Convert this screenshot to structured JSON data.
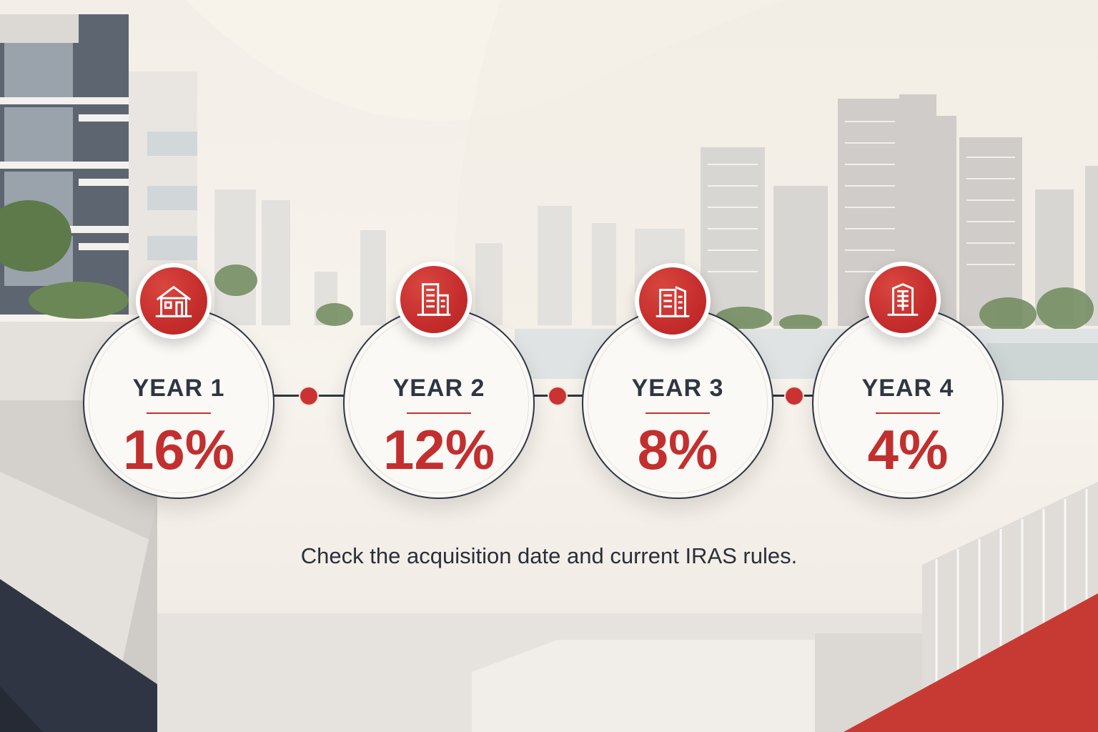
{
  "steps": [
    {
      "year": "YEAR 1",
      "rate": "16%",
      "icon": "house-icon"
    },
    {
      "year": "YEAR 2",
      "rate": "12%",
      "icon": "apartment-building-icon"
    },
    {
      "year": "YEAR 3",
      "rate": "8%",
      "icon": "office-building-icon"
    },
    {
      "year": "YEAR 4",
      "rate": "4%",
      "icon": "highrise-building-icon"
    }
  ],
  "note": "Check the acquisition date and current IRAS rules.",
  "colors": {
    "accent_red": "#c4302f",
    "navy": "#2f3542",
    "background": "#f5f0e8"
  }
}
